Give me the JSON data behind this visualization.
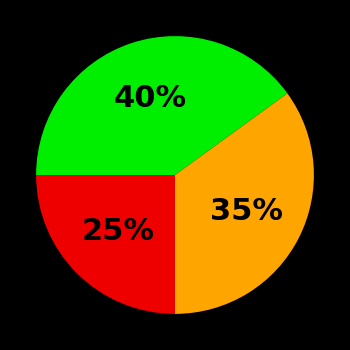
{
  "slices": [
    40,
    35,
    25
  ],
  "colors": [
    "#00ee00",
    "#ffa500",
    "#ee0000"
  ],
  "labels": [
    "40%",
    "35%",
    "25%"
  ],
  "background_color": "#000000",
  "label_fontsize": 22,
  "label_color": "#000000",
  "startangle": 180,
  "label_r": 0.58
}
